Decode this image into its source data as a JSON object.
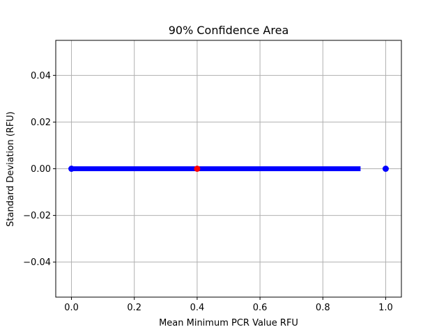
{
  "chart_data": {
    "type": "scatter",
    "title": "90% Confidence Area",
    "xlabel": "Mean Minimum PCR Value RFU",
    "ylabel": "Standard Deviation (RFU)",
    "xlim": [
      -0.05,
      1.05
    ],
    "ylim": [
      -0.055,
      0.055
    ],
    "x_ticks": [
      0.0,
      0.2,
      0.4,
      0.6,
      0.8,
      1.0
    ],
    "x_tick_labels": [
      "0.0",
      "0.2",
      "0.4",
      "0.6",
      "0.8",
      "1.0"
    ],
    "y_ticks": [
      -0.04,
      -0.02,
      0.0,
      0.02,
      0.04
    ],
    "y_tick_labels": [
      "−0.04",
      "−0.02",
      "0.00",
      "0.02",
      "0.04"
    ],
    "grid": true,
    "confidence_band": {
      "x_start": 0.0,
      "x_end": 0.92,
      "y": 0.0,
      "color": "#0000ff"
    },
    "points": [
      {
        "x": 0.0,
        "y": 0.0,
        "color": "#0000ff"
      },
      {
        "x": 1.0,
        "y": 0.0,
        "color": "#0000ff"
      },
      {
        "x": 0.4,
        "y": 0.0,
        "color": "#ff0000"
      }
    ]
  }
}
